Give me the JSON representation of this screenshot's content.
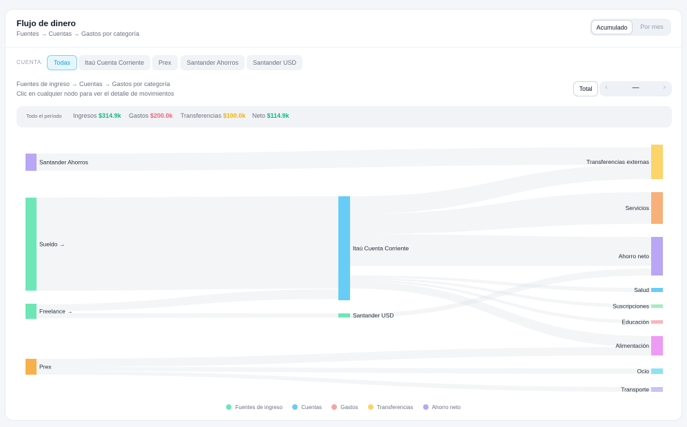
{
  "header": {
    "title": "Flujo de dinero",
    "subtitle": "Fuentes → Cuentas → Gastos por categoría",
    "view_toggle": {
      "active": "Acumulado",
      "inactive": "Por mes"
    }
  },
  "account_filter": {
    "label": "CUENTA:",
    "chips": [
      "Todas",
      "Itaú Cuenta Corriente",
      "Prex",
      "Santander Ahorros",
      "Santander USD"
    ],
    "selected": "Todas"
  },
  "description": {
    "line1": "Fuentes de ingreso → Cuentas → Gastos por categoría",
    "line2": "Clic en cualquier nodo para ver el detalle de movimientos"
  },
  "period_controls": {
    "total_label": "Total",
    "current": "—",
    "prev_icon": "chevron-left-icon",
    "next_icon": "chevron-right-icon"
  },
  "summary": {
    "period_label": "Todo el período",
    "income_label": "Ingresos",
    "income_value": "$314.9k",
    "expense_label": "Gastos",
    "expense_value": "$200.0k",
    "transfer_label": "Transferencias",
    "transfer_value": "$100.0k",
    "net_label": "Neto",
    "net_value": "$114.9k"
  },
  "colors": {
    "income": "#6ee7b7",
    "account": "#67cdf7",
    "expense": "#f4a4a4",
    "transfer": "#fcd469",
    "savings": "#b9a6f5",
    "positive_text": "#10b981",
    "negative_text": "#f0637a",
    "transfer_text": "#f2b300"
  },
  "sankey": {
    "nodes": [
      {
        "id": "santander_ahorros",
        "label": "Santander Ahorros",
        "color": "#b9a6f5"
      },
      {
        "id": "sueldo",
        "label": "Sueldo →",
        "color": "#6ee7b7"
      },
      {
        "id": "freelance",
        "label": "Freelance →",
        "color": "#6ee7b7"
      },
      {
        "id": "prex",
        "label": "Prex",
        "color": "#f8b04a"
      },
      {
        "id": "itau",
        "label": "Itaú Cuenta Corriente",
        "color": "#67cdf7"
      },
      {
        "id": "santander_usd",
        "label": "Santander USD",
        "color": "#6ee7b7"
      },
      {
        "id": "transferencias",
        "label": "Transferencias externas",
        "color": "#fcd469"
      },
      {
        "id": "servicios",
        "label": "Servicios",
        "color": "#f8b07a"
      },
      {
        "id": "ahorro",
        "label": "Ahorro neto",
        "color": "#b9a6f5"
      },
      {
        "id": "salud",
        "label": "Salud",
        "color": "#67cdf7"
      },
      {
        "id": "suscripciones",
        "label": "Suscripciones",
        "color": "#a7ebc3"
      },
      {
        "id": "educacion",
        "label": "Educación",
        "color": "#f9b4bf"
      },
      {
        "id": "alimentacion",
        "label": "Alimentación",
        "color": "#ee9bf5"
      },
      {
        "id": "ocio",
        "label": "Ocio",
        "color": "#8be3f5"
      },
      {
        "id": "transporte",
        "label": "Transporte",
        "color": "#c9c3f7"
      }
    ],
    "links": [
      {
        "source": "santander_ahorros",
        "target": "transferencias"
      },
      {
        "source": "sueldo",
        "target": "itau"
      },
      {
        "source": "freelance",
        "target": "itau"
      },
      {
        "source": "freelance",
        "target": "santander_usd"
      },
      {
        "source": "itau",
        "target": "transferencias"
      },
      {
        "source": "itau",
        "target": "servicios"
      },
      {
        "source": "itau",
        "target": "ahorro"
      },
      {
        "source": "itau",
        "target": "salud"
      },
      {
        "source": "itau",
        "target": "suscripciones"
      },
      {
        "source": "itau",
        "target": "educacion"
      },
      {
        "source": "itau",
        "target": "alimentacion"
      },
      {
        "source": "santander_usd",
        "target": "ahorro"
      },
      {
        "source": "prex",
        "target": "alimentacion"
      },
      {
        "source": "prex",
        "target": "ocio"
      },
      {
        "source": "prex",
        "target": "transporte"
      }
    ]
  },
  "legend": [
    {
      "label": "Fuentes de ingreso",
      "color": "#6ee7b7"
    },
    {
      "label": "Cuentas",
      "color": "#67cdf7"
    },
    {
      "label": "Gastos",
      "color": "#f4a4a4"
    },
    {
      "label": "Transferencias",
      "color": "#fcd469"
    },
    {
      "label": "Ahorro neto",
      "color": "#b9a6f5"
    }
  ]
}
